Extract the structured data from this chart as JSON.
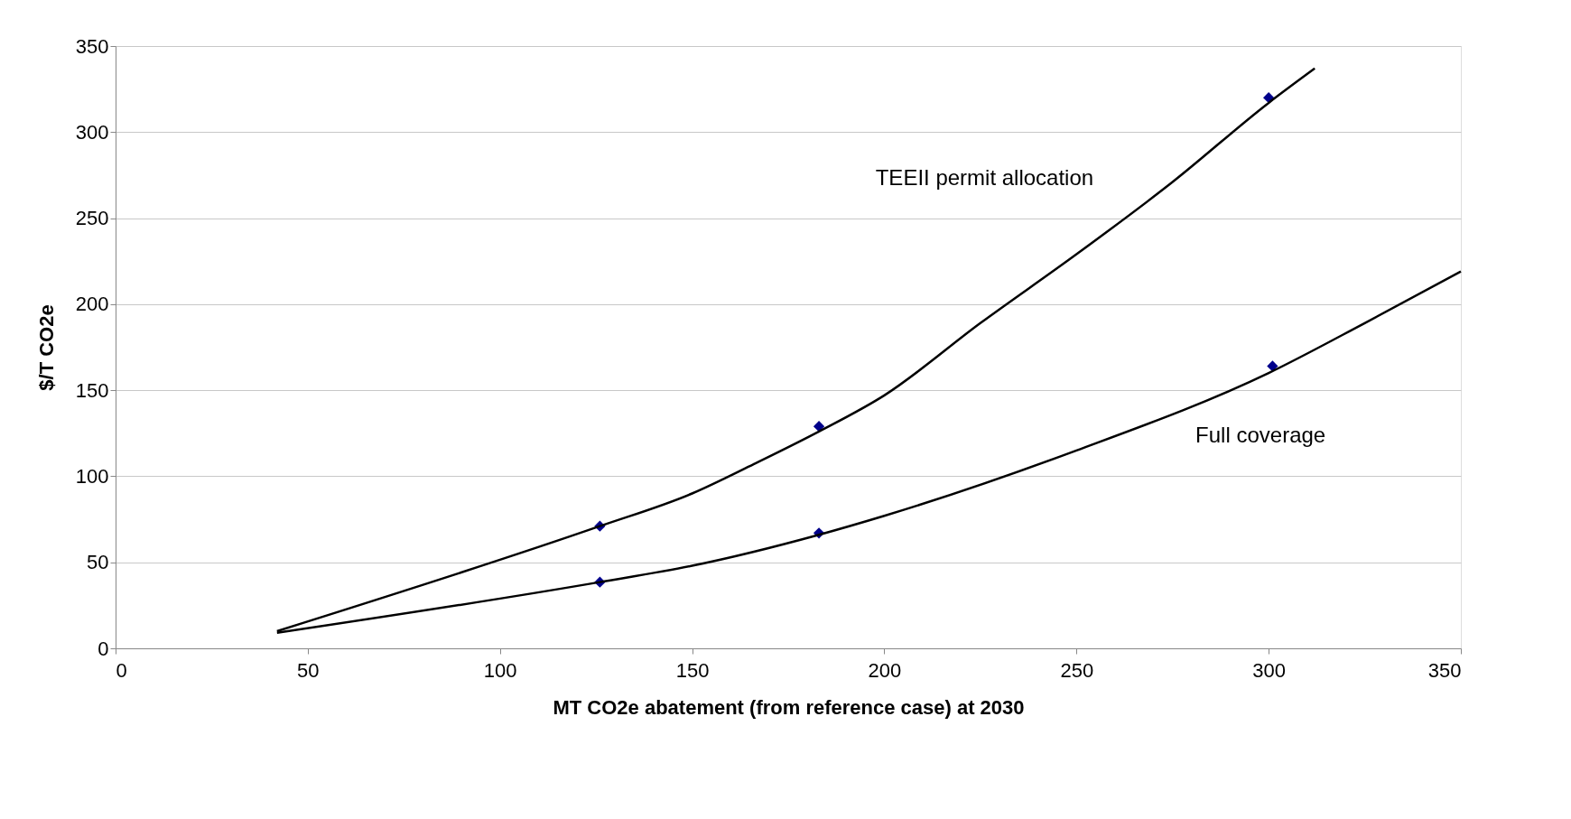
{
  "chart_data": {
    "type": "scatter",
    "xlabel": "MT CO2e abatement (from reference case) at 2030",
    "ylabel": "$/T CO2e",
    "xlim": [
      0,
      350
    ],
    "xticks": [
      0,
      50,
      100,
      150,
      200,
      250,
      300,
      350
    ],
    "ylim": [
      0,
      350
    ],
    "yticks": [
      0,
      50,
      100,
      150,
      200,
      250,
      300,
      350
    ],
    "grid": "y",
    "series": [
      {
        "marker": "diamond",
        "color": "#00008b",
        "x": [
          126,
          183,
          300
        ],
        "values": [
          71,
          129,
          320
        ]
      },
      {
        "marker": "diamond",
        "color": "#00008b",
        "x": [
          126,
          183,
          301
        ],
        "values": [
          38.5,
          67,
          164
        ]
      },
      {
        "type": "line",
        "name": "TEEII permit allocation",
        "marker": "none",
        "color": "#000000",
        "x": [
          42,
          126,
          150,
          166,
          183,
          200,
          225,
          250,
          275,
          300,
          312
        ],
        "values": [
          10,
          71,
          90,
          107,
          126,
          147,
          189,
          229,
          271,
          317,
          337
        ]
      },
      {
        "type": "line",
        "name": "Full coverage",
        "marker": "none",
        "color": "#000000",
        "x": [
          42,
          126,
          150,
          183,
          200,
          250,
          300,
          325,
          350
        ],
        "values": [
          9,
          38.5,
          48,
          66,
          77,
          115,
          160,
          189,
          219
        ]
      }
    ]
  }
}
